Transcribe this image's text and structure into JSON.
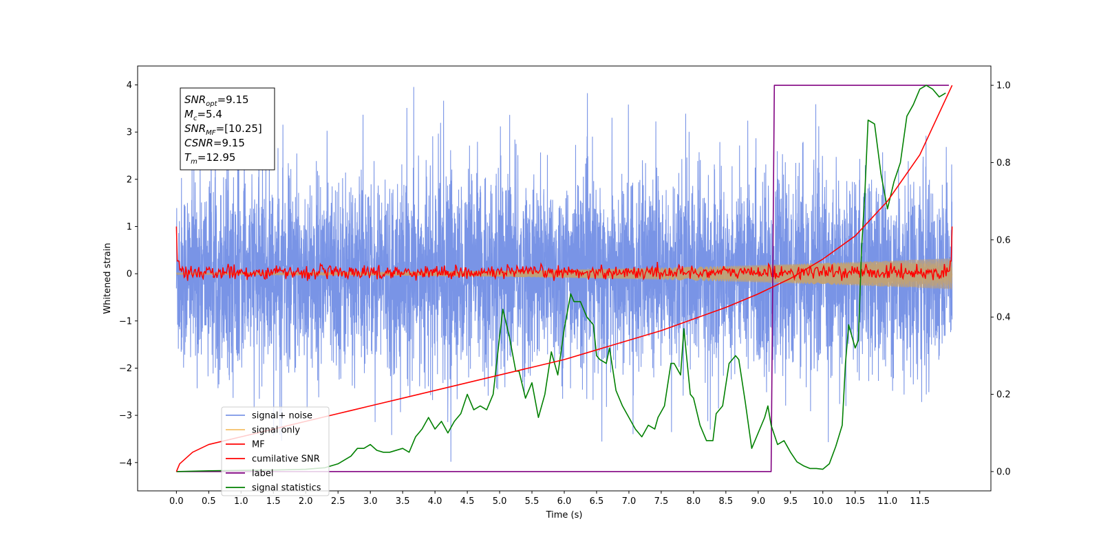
{
  "chart_data": {
    "type": "line",
    "xlabel": "Time (s)",
    "ylabel": "Whitened strain",
    "xlim": [
      -0.6,
      12.6
    ],
    "ylim": [
      -4.6,
      4.4
    ],
    "y2lim": [
      -0.05,
      1.05
    ],
    "x_ticks": [
      0.0,
      0.5,
      1.0,
      1.5,
      2.0,
      2.5,
      3.0,
      3.5,
      4.0,
      4.5,
      5.0,
      5.5,
      6.0,
      6.5,
      7.0,
      7.5,
      8.0,
      8.5,
      9.0,
      9.5,
      10.0,
      10.5,
      11.0,
      11.5
    ],
    "x_tick_labels": [
      "0.0",
      "0.5",
      "1.0",
      "1.5",
      "2.0",
      "2.5",
      "3.0",
      "3.5",
      "4.0",
      "4.5",
      "5.0",
      "5.5",
      "6.0",
      "6.5",
      "7.0",
      "7.5",
      "8.0",
      "8.5",
      "9.0",
      "9.5",
      "10.0",
      "10.5",
      "11.0",
      "11.5"
    ],
    "y_ticks": [
      -4,
      -3,
      -2,
      -1,
      0,
      1,
      2,
      3,
      4
    ],
    "y_tick_labels": [
      "−4",
      "−3",
      "−2",
      "−1",
      "0",
      "1",
      "2",
      "3",
      "4"
    ],
    "y2_ticks": [
      0.0,
      0.2,
      0.4,
      0.6,
      0.8,
      1.0
    ],
    "y2_tick_labels": [
      "0.0",
      "0.2",
      "0.4",
      "0.6",
      "0.8",
      "1.0"
    ],
    "grid": false,
    "legend_placement": "lower-left",
    "info_box": {
      "placement": "upper-left",
      "lines": [
        {
          "var": "SNR",
          "sub": "opt",
          "value": "=9.15"
        },
        {
          "var": "M",
          "sub": "c",
          "value": "=5.4"
        },
        {
          "var": "SNR",
          "sub": "MF",
          "value": "=[10.25]"
        },
        {
          "var": "CSNR",
          "sub": "",
          "value": "=9.15"
        },
        {
          "var": "T",
          "sub": "m",
          "value": "=12.95"
        }
      ]
    },
    "series": [
      {
        "name": "signal+ noise",
        "color": "#7994e6",
        "axis": "left",
        "style": "noise",
        "x_range": [
          0.0,
          12.0
        ],
        "envelope_abs_max": 4.0
      },
      {
        "name": "signal only",
        "color": "#f5bf66",
        "axis": "left",
        "style": "chirp",
        "x_range": [
          0.0,
          12.0
        ],
        "amplitude_start": 0.02,
        "amplitude_end": 0.33
      },
      {
        "name": "MF",
        "color": "#ff0000",
        "axis": "left",
        "style": "mf",
        "x_range": [
          0.0,
          12.0
        ],
        "start_value": 1.0,
        "end_value": 1.0,
        "typical_range": [
          -0.15,
          0.25
        ]
      },
      {
        "name": "cumilative SNR",
        "color": "#ff0000",
        "axis": "right",
        "x": [
          0.0,
          0.05,
          0.25,
          0.5,
          1.0,
          1.5,
          2.0,
          2.5,
          3.0,
          3.5,
          4.0,
          4.5,
          5.0,
          5.5,
          6.0,
          6.5,
          7.0,
          7.5,
          8.0,
          8.5,
          9.0,
          9.5,
          10.0,
          10.5,
          11.0,
          11.5,
          12.0
        ],
        "y": [
          0.0,
          0.02,
          0.05,
          0.07,
          0.09,
          0.11,
          0.13,
          0.15,
          0.17,
          0.19,
          0.21,
          0.23,
          0.25,
          0.27,
          0.29,
          0.315,
          0.34,
          0.365,
          0.395,
          0.425,
          0.46,
          0.5,
          0.55,
          0.61,
          0.7,
          0.82,
          1.0
        ]
      },
      {
        "name": "label",
        "color": "#800080",
        "axis": "right",
        "x": [
          0.0,
          9.2,
          9.25,
          11.95
        ],
        "y": [
          0.0,
          0.0,
          1.0,
          1.0
        ]
      },
      {
        "name": "signal statistics",
        "color": "#008000",
        "axis": "right",
        "x": [
          0.0,
          0.5,
          1.0,
          1.5,
          2.0,
          2.3,
          2.5,
          2.7,
          2.8,
          2.9,
          3.0,
          3.1,
          3.2,
          3.3,
          3.5,
          3.6,
          3.7,
          3.8,
          3.9,
          4.0,
          4.1,
          4.2,
          4.3,
          4.4,
          4.5,
          4.6,
          4.7,
          4.8,
          4.9,
          5.0,
          5.05,
          5.15,
          5.25,
          5.3,
          5.4,
          5.5,
          5.6,
          5.7,
          5.8,
          5.9,
          6.0,
          6.1,
          6.15,
          6.25,
          6.35,
          6.45,
          6.5,
          6.55,
          6.65,
          6.7,
          6.8,
          6.9,
          7.0,
          7.1,
          7.2,
          7.3,
          7.4,
          7.45,
          7.55,
          7.65,
          7.7,
          7.8,
          7.85,
          7.95,
          8.0,
          8.1,
          8.2,
          8.3,
          8.35,
          8.45,
          8.55,
          8.65,
          8.7,
          8.8,
          8.9,
          9.0,
          9.1,
          9.15,
          9.2,
          9.3,
          9.4,
          9.5,
          9.6,
          9.7,
          9.8,
          9.9,
          10.0,
          10.1,
          10.2,
          10.3,
          10.35,
          10.4,
          10.5,
          10.55,
          10.6,
          10.65,
          10.7,
          10.8,
          10.9,
          11.0,
          11.1,
          11.2,
          11.3,
          11.4,
          11.5,
          11.6,
          11.7,
          11.8,
          11.9
        ],
        "y": [
          0.0,
          0.002,
          0.003,
          0.004,
          0.006,
          0.01,
          0.02,
          0.04,
          0.06,
          0.06,
          0.07,
          0.055,
          0.05,
          0.05,
          0.06,
          0.05,
          0.09,
          0.11,
          0.14,
          0.11,
          0.13,
          0.1,
          0.13,
          0.15,
          0.2,
          0.16,
          0.17,
          0.16,
          0.2,
          0.35,
          0.42,
          0.35,
          0.26,
          0.26,
          0.19,
          0.23,
          0.14,
          0.2,
          0.31,
          0.25,
          0.37,
          0.46,
          0.44,
          0.44,
          0.4,
          0.38,
          0.3,
          0.29,
          0.28,
          0.32,
          0.21,
          0.17,
          0.14,
          0.11,
          0.09,
          0.12,
          0.11,
          0.14,
          0.17,
          0.28,
          0.28,
          0.25,
          0.37,
          0.2,
          0.19,
          0.12,
          0.08,
          0.08,
          0.15,
          0.17,
          0.28,
          0.3,
          0.29,
          0.18,
          0.06,
          0.1,
          0.14,
          0.17,
          0.12,
          0.07,
          0.08,
          0.05,
          0.025,
          0.015,
          0.008,
          0.008,
          0.006,
          0.02,
          0.065,
          0.12,
          0.28,
          0.38,
          0.32,
          0.34,
          0.58,
          0.72,
          0.91,
          0.9,
          0.77,
          0.68,
          0.75,
          0.8,
          0.92,
          0.95,
          0.99,
          1.0,
          0.99,
          0.97,
          0.98
        ]
      }
    ]
  }
}
